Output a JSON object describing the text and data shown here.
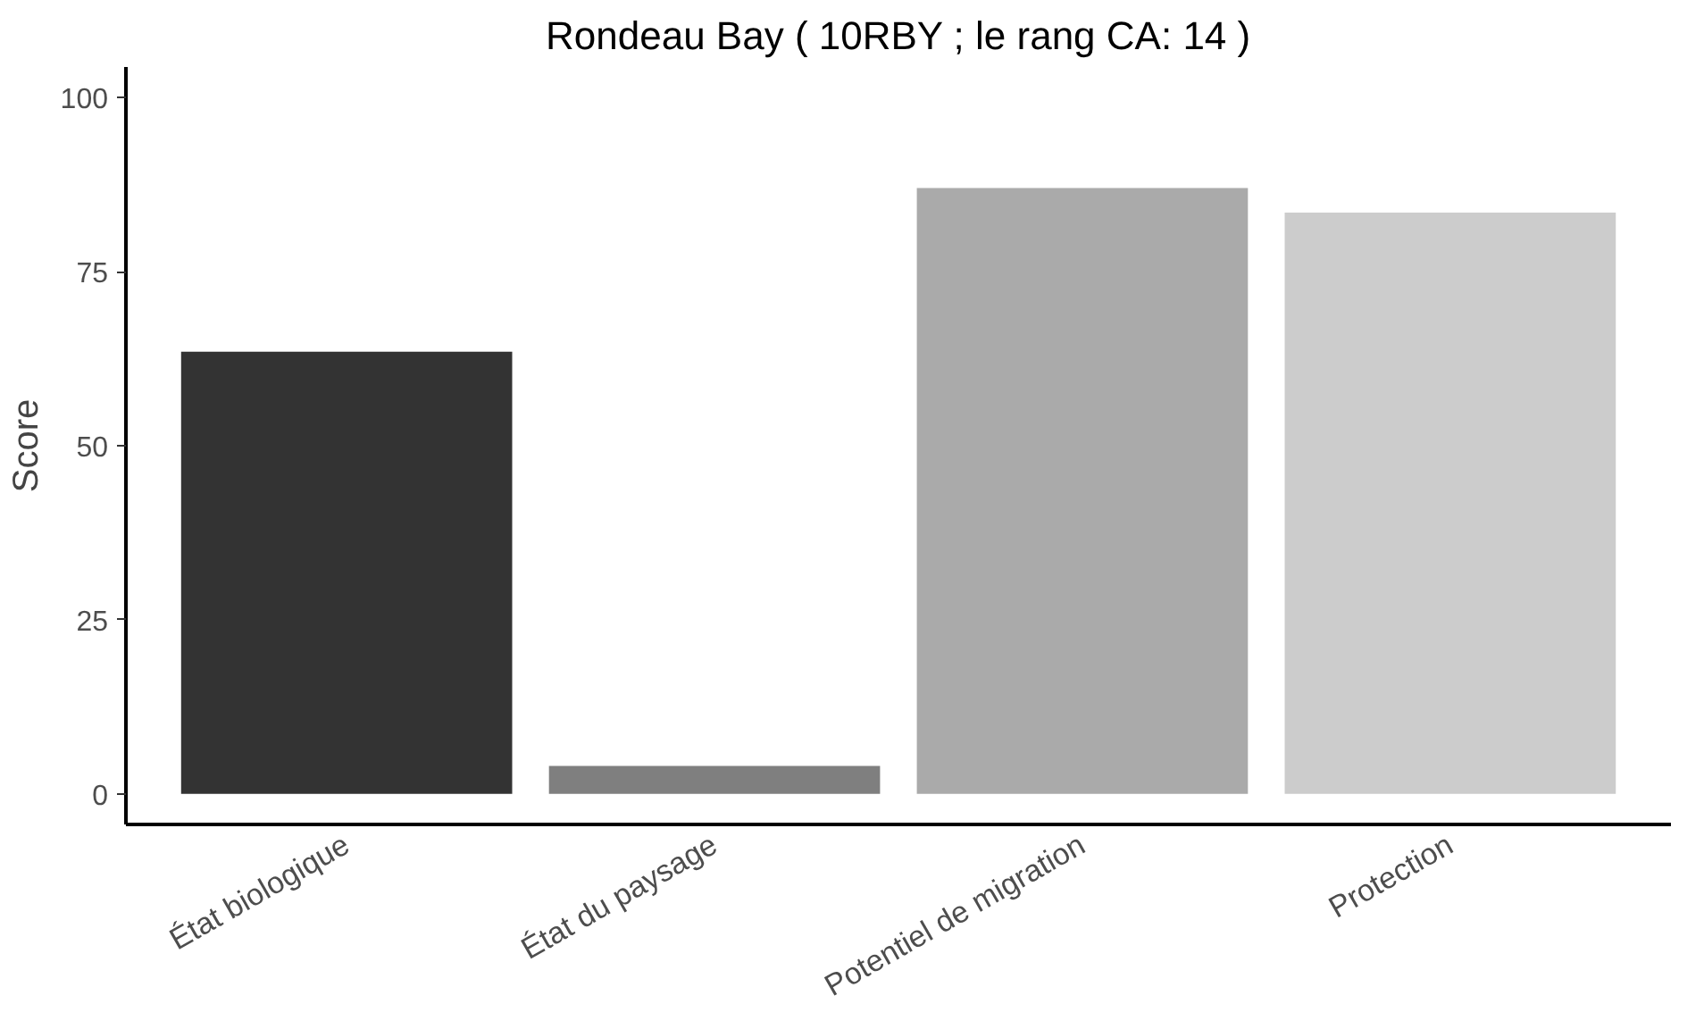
{
  "chart_data": {
    "type": "bar",
    "title": "Rondeau Bay ( 10RBY ; le rang CA: 14 )",
    "ylabel": "Score",
    "categories": [
      "État biologique",
      "État du paysage",
      "Potentiel de migration",
      "Protection"
    ],
    "values": [
      63.5,
      4,
      87,
      83.5
    ],
    "colors": [
      "#333333",
      "#7f7f7f",
      "#aaaaaa",
      "#cccccc"
    ],
    "ylim": [
      -4.4,
      104.4
    ],
    "yticks": [
      0,
      25,
      50,
      75,
      100
    ],
    "grid": false
  }
}
